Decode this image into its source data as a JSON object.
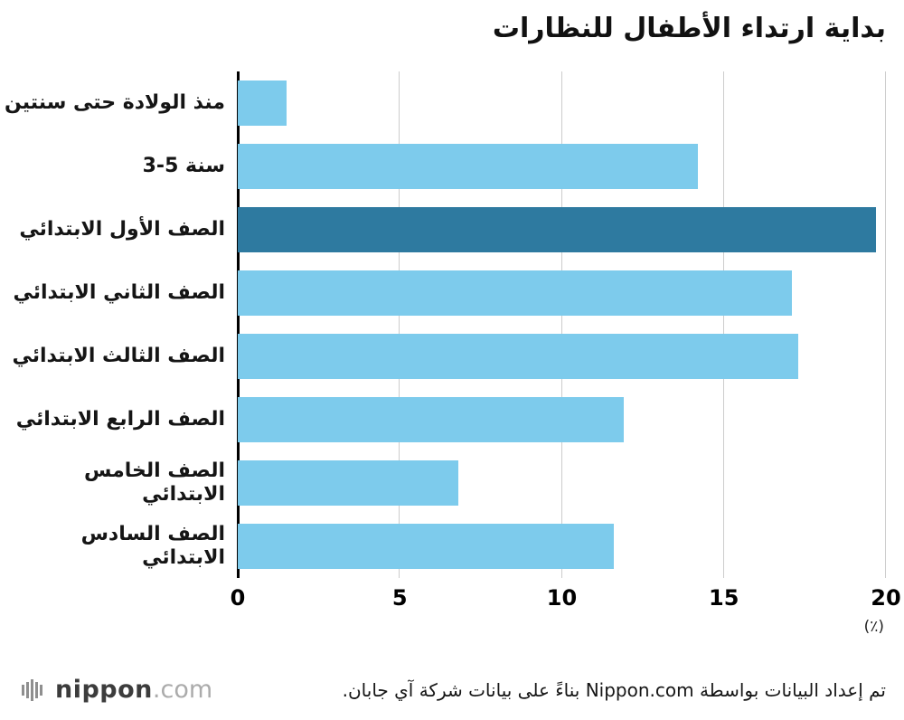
{
  "title": "بداية ارتداء الأطفال للنظارات",
  "chart_data": {
    "type": "bar",
    "orientation": "horizontal",
    "title": "بداية ارتداء الأطفال للنظارات",
    "categories": [
      "منذ الولادة حتى سنتين",
      "3-5 سنة",
      "الصف الأول الابتدائي",
      "الصف الثاني الابتدائي",
      "الصف الثالث الابتدائي",
      "الصف الرابع الابتدائي",
      "الصف الخامس الابتدائي",
      "الصف السادس الابتدائي"
    ],
    "values": [
      1.5,
      14.2,
      19.7,
      17.1,
      17.3,
      11.9,
      6.8,
      11.6
    ],
    "highlighted_index": 2,
    "xlabel": "",
    "ylabel": "",
    "xlim": [
      0,
      20
    ],
    "xticks": [
      0,
      5,
      10,
      15,
      20
    ],
    "unit_label": "(٪)",
    "grid": true,
    "bar_color": "#7DCBEC",
    "highlight_color": "#2E7AA0",
    "gridline_color": "#cccccc",
    "axis_line_color": "#000000"
  },
  "footer": {
    "credit": "تم إعداد البيانات بواسطة Nippon.com بناءً على بيانات شركة آي جابان.",
    "logo_name": "nippon",
    "logo_suffix": ".com"
  }
}
